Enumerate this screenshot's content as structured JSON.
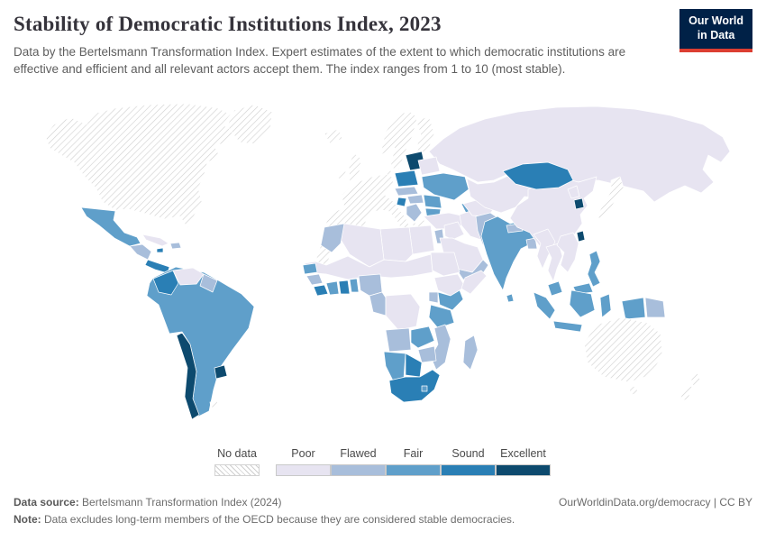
{
  "header": {
    "title": "Stability of Democratic Institutions Index, 2023",
    "subtitle": "Data by the Bertelsmann Transformation Index. Expert estimates of the extent to which democratic institutions are effective and efficient and all relevant actors accept them. The index ranges from 1 to 10 (most stable).",
    "logo": {
      "line1": "Our World",
      "line2": "in Data"
    }
  },
  "legend": {
    "no_data_label": "No data",
    "categories": [
      {
        "key": "poor",
        "label": "Poor"
      },
      {
        "key": "flawed",
        "label": "Flawed"
      },
      {
        "key": "fair",
        "label": "Fair"
      },
      {
        "key": "sound",
        "label": "Sound"
      },
      {
        "key": "excellent",
        "label": "Excellent"
      }
    ],
    "colors": {
      "poor": "#e7e4f1",
      "flawed": "#a8bedb",
      "fair": "#5f9fca",
      "sound": "#2a7fb5",
      "excellent": "#0d4a6e"
    },
    "nodata_hatch_color": "#cfcfcf"
  },
  "footer": {
    "source_label": "Data source:",
    "source": "Bertelsmann Transformation Index (2024)",
    "right": "OurWorldinData.org/democracy | CC BY",
    "note_label": "Note:",
    "note": "Data excludes long-term members of the OECD because they are considered stable democracies."
  },
  "map": {
    "regions": {
      "north-america": "nodata",
      "greenland": "nodata",
      "iceland": "nodata",
      "uk-ireland": "nodata",
      "scandinavia": "nodata",
      "western-europe": "nodata",
      "western-sahara": "nodata",
      "falkland-islands": "nodata",
      "japan": "nodata",
      "australia": "nodata",
      "new-zealand": "nodata",
      "russia": "poor",
      "central-asia": "poor",
      "china": "poor",
      "myanmar": "poor",
      "thailand": "poor",
      "indochina": "poor",
      "afghanistan": "poor",
      "iran": "poor",
      "iraq-syria": "poor",
      "arabian-peninsula": "poor",
      "egypt": "poor",
      "libya": "poor",
      "algeria": "poor",
      "sahel": "poor",
      "sudan": "poor",
      "drc": "poor",
      "ethiopia": "poor",
      "somalia": "poor",
      "venezuela": "poor",
      "belarus": "poor",
      "turkey": "poor",
      "cuba": "poor",
      "north-korea": "poor",
      "morocco": "flawed",
      "guinea": "flawed",
      "nigeria": "flawed",
      "cameroon-gabon": "flawed",
      "uganda": "flawed",
      "angola": "flawed",
      "malawi-mozambique": "flawed",
      "zimbabwe": "flawed",
      "madagascar": "flawed",
      "pakistan": "flawed",
      "nepal": "flawed",
      "bangladesh": "flawed",
      "yemen-oman": "flawed",
      "levant": "flawed",
      "hispaniola": "flawed",
      "guyanas": "flawed",
      "central-america-north": "flawed",
      "czech-slovakia": "flawed",
      "hungary": "flawed",
      "balkans": "flawed",
      "papua-new-guinea": "flawed",
      "mexico": "fair",
      "south-america": "fair",
      "senegal": "fair",
      "cote-divoire": "fair",
      "togo-benin": "fair",
      "kenya": "fair",
      "tanzania": "fair",
      "zambia": "fair",
      "namibia": "fair",
      "lesotho": "fair",
      "india": "fair",
      "sri-lanka": "fair",
      "philippines": "fair",
      "malaysia": "fair",
      "indonesia": "fair",
      "ukraine": "fair",
      "romania": "fair",
      "bulgaria": "fair",
      "caucasus": "fair",
      "colombia": "sound",
      "costa-rica-panama": "sound",
      "jamaica": "sound",
      "sierra-leone-liberia": "sound",
      "ghana": "sound",
      "botswana": "sound",
      "south-africa": "sound",
      "mongolia": "sound",
      "poland": "sound",
      "croatia": "sound",
      "chile": "excellent",
      "uruguay": "excellent",
      "baltics": "excellent",
      "south-korea": "excellent",
      "taiwan": "excellent"
    }
  }
}
